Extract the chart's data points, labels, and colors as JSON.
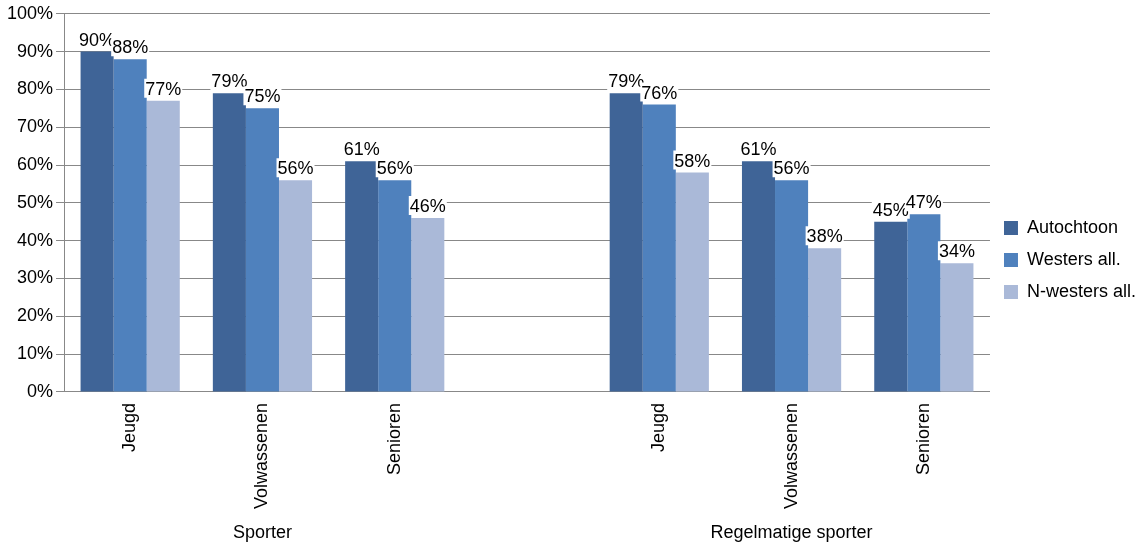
{
  "chart_data": {
    "type": "bar",
    "categories": [
      "Jeugd",
      "Volwassenen",
      "Senioren",
      null,
      "Jeugd",
      "Volwassenen",
      "Senioren"
    ],
    "series": [
      {
        "name": "Autochtoon",
        "color": "#3f6497",
        "values": [
          90,
          79,
          61,
          null,
          79,
          61,
          45
        ],
        "value_labels": [
          "90%",
          "79%",
          "61%",
          null,
          "79%",
          "61%",
          "45%"
        ]
      },
      {
        "name": "Westers all.",
        "color": "#4f81bd",
        "values": [
          88,
          75,
          56,
          null,
          76,
          56,
          47
        ],
        "value_labels": [
          "88%",
          "75%",
          "56%",
          null,
          "76%",
          "56%",
          "47%"
        ]
      },
      {
        "name": "N-westers all.",
        "color": "#aab9d8",
        "values": [
          77,
          56,
          46,
          null,
          58,
          38,
          34
        ],
        "value_labels": [
          "77%",
          "56%",
          "46%",
          null,
          "58%",
          "38%",
          "34%"
        ]
      }
    ],
    "ylim": [
      0,
      100
    ],
    "yticks": [
      {
        "value": 0,
        "label": "0%"
      },
      {
        "value": 10,
        "label": "10%"
      },
      {
        "value": 20,
        "label": "20%"
      },
      {
        "value": 30,
        "label": "30%"
      },
      {
        "value": 40,
        "label": "40%"
      },
      {
        "value": 50,
        "label": "50%"
      },
      {
        "value": 60,
        "label": "60%"
      },
      {
        "value": 70,
        "label": "70%"
      },
      {
        "value": 80,
        "label": "80%"
      },
      {
        "value": 90,
        "label": "90%"
      },
      {
        "value": 100,
        "label": "100%"
      }
    ],
    "grid": "y",
    "legend": "right",
    "annotations": [
      "Sporter",
      "Regelmatige sporter"
    ]
  }
}
